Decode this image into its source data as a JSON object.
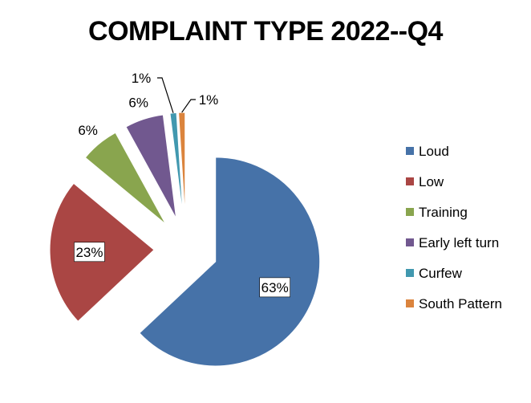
{
  "chart_data": {
    "type": "pie",
    "title": "COMPLAINT TYPE 2022--Q4",
    "categories": [
      "Loud",
      "Low",
      "Training",
      "Early left turn",
      "Curfew",
      "South Pattern"
    ],
    "values": [
      63,
      23,
      6,
      6,
      1,
      1
    ],
    "labels": [
      "63%",
      "23%",
      "6%",
      "6%",
      "1%",
      "1%"
    ],
    "colors": [
      "#4672A8",
      "#AA4644",
      "#89A54E",
      "#71588F",
      "#4198AF",
      "#DB843D"
    ],
    "exploded": true,
    "legend_position": "right"
  }
}
